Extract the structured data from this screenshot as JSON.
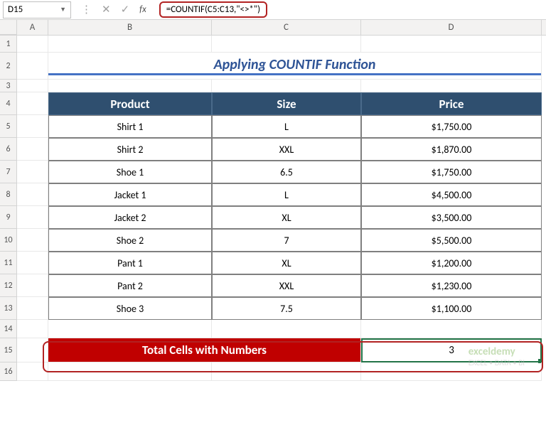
{
  "nameBox": "D15",
  "formula": "=COUNTIF(C5:C13,\"<>*\")",
  "title": "Applying COUNTIF Function",
  "columns": [
    "A",
    "B",
    "C",
    "D"
  ],
  "rowNumbers": [
    "1",
    "2",
    "3",
    "4",
    "5",
    "6",
    "7",
    "8",
    "9",
    "10",
    "11",
    "12",
    "13",
    "14",
    "15",
    "16"
  ],
  "headers": {
    "b": "Product",
    "c": "Size",
    "d": "Price"
  },
  "rows": [
    {
      "b": "Shirt 1",
      "c": "L",
      "d": "$1,750.00"
    },
    {
      "b": "Shirt 2",
      "c": "XXL",
      "d": "$1,870.00"
    },
    {
      "b": "Shoe 1",
      "c": "6.5",
      "d": "$1,750.00"
    },
    {
      "b": "Jacket 1",
      "c": "L",
      "d": "$4,500.00"
    },
    {
      "b": "Jacket 2",
      "c": "XL",
      "d": "$3,500.00"
    },
    {
      "b": "Shoe 2",
      "c": "7",
      "d": "$5,500.00"
    },
    {
      "b": "Pant 1",
      "c": "XL",
      "d": "$1,200.00"
    },
    {
      "b": "Pant 2",
      "c": "XXL",
      "d": "$1,230.00"
    },
    {
      "b": "Shoe 3",
      "c": "7.5",
      "d": "$1,100.00"
    }
  ],
  "totalLabel": "Total Cells with Numbers",
  "totalValue": "3",
  "watermark": {
    "brand": "exceldemy",
    "tag": "EXCEL • DATA • BI"
  },
  "colors": {
    "titleText": "#2f5496",
    "titleUnderline": "#4472c4",
    "tableHeadBg": "#2f4f6f",
    "totalBg": "#c00000",
    "selectBorder": "#227447",
    "highlight": "#b22222"
  },
  "layout": {
    "colWidths": {
      "A": 44,
      "B": 230,
      "C": 210,
      "D": 254
    },
    "rowHeaderWidth": 24
  }
}
